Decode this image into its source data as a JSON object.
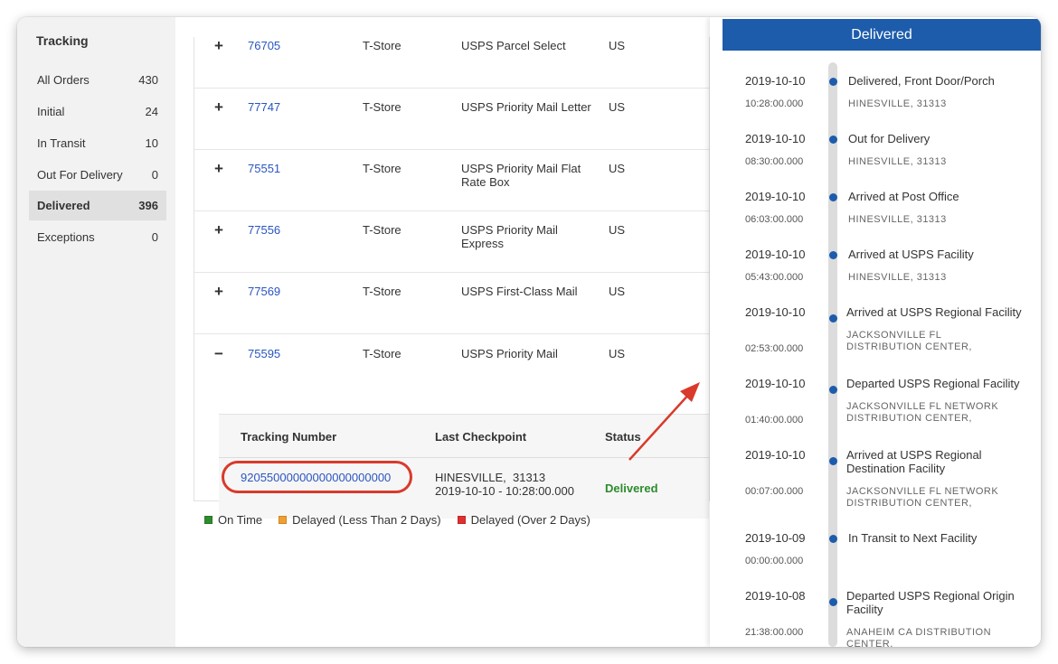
{
  "sidebar": {
    "title": "Tracking",
    "items": [
      {
        "label": "All Orders",
        "count": "430"
      },
      {
        "label": "Initial",
        "count": "24"
      },
      {
        "label": "In Transit",
        "count": "10"
      },
      {
        "label": "Out For Delivery",
        "count": "0"
      },
      {
        "label": "Delivered",
        "count": "396"
      },
      {
        "label": "Exceptions",
        "count": "0"
      }
    ]
  },
  "orders": [
    {
      "toggle": "+",
      "id": "76705",
      "store": "T-Store",
      "carrier": "USPS Parcel Select",
      "country": "US"
    },
    {
      "toggle": "+",
      "id": "77747",
      "store": "T-Store",
      "carrier": "USPS Priority Mail Letter",
      "country": "US"
    },
    {
      "toggle": "+",
      "id": "75551",
      "store": "T-Store",
      "carrier": "USPS Priority Mail Flat Rate Box",
      "country": "US"
    },
    {
      "toggle": "+",
      "id": "77556",
      "store": "T-Store",
      "carrier": "USPS Priority Mail Express",
      "country": "US"
    },
    {
      "toggle": "+",
      "id": "77569",
      "store": "T-Store",
      "carrier": "USPS First-Class Mail",
      "country": "US"
    },
    {
      "toggle": "−",
      "id": "75595",
      "store": "T-Store",
      "carrier": "USPS Priority Mail",
      "country": "US"
    }
  ],
  "detail": {
    "headers": {
      "tracking": "Tracking Number",
      "checkpoint": "Last Checkpoint",
      "status": "Status"
    },
    "tracking_number": "92055000000000000000000",
    "checkpoint_location": "HINESVILLE,  31313",
    "checkpoint_time": "2019-10-10 - 10:28:00.000",
    "status": "Delivered"
  },
  "legend": [
    {
      "label": "On Time",
      "color": "#2e8b2e"
    },
    {
      "label": "Delayed (Less Than 2 Days)",
      "color": "#f0a030"
    },
    {
      "label": "Delayed (Over 2 Days)",
      "color": "#e03030"
    }
  ],
  "panel": {
    "title": "Delivered",
    "events": [
      {
        "date": "2019-10-10",
        "time": "10:28:00.000",
        "title": "Delivered, Front Door/Porch",
        "location": "HINESVILLE, 31313"
      },
      {
        "date": "2019-10-10",
        "time": "08:30:00.000",
        "title": "Out for Delivery",
        "location": "HINESVILLE, 31313"
      },
      {
        "date": "2019-10-10",
        "time": "06:03:00.000",
        "title": "Arrived at Post Office",
        "location": "HINESVILLE, 31313"
      },
      {
        "date": "2019-10-10",
        "time": "05:43:00.000",
        "title": "Arrived at USPS Facility",
        "location": "HINESVILLE, 31313"
      },
      {
        "date": "2019-10-10",
        "time": "02:53:00.000",
        "title": "Arrived at USPS Regional Facility",
        "location": "JACKSONVILLE FL DISTRIBUTION CENTER,"
      },
      {
        "date": "2019-10-10",
        "time": "01:40:00.000",
        "title": "Departed USPS Regional Facility",
        "location": "JACKSONVILLE FL NETWORK DISTRIBUTION CENTER,"
      },
      {
        "date": "2019-10-10",
        "time": "00:07:00.000",
        "title": "Arrived at USPS Regional Destination Facility",
        "location": "JACKSONVILLE FL NETWORK DISTRIBUTION CENTER,"
      },
      {
        "date": "2019-10-09",
        "time": "00:00:00.000",
        "title": "In Transit to Next Facility",
        "location": ""
      },
      {
        "date": "2019-10-08",
        "time": "21:38:00.000",
        "title": "Departed USPS Regional Origin Facility",
        "location": "ANAHEIM CA DISTRIBUTION CENTER,"
      }
    ]
  },
  "colors": {
    "accent": "#1d5cab",
    "link": "#2a55c0",
    "highlight_ring": "#d93a2b",
    "delivered": "#2e8b2e"
  }
}
